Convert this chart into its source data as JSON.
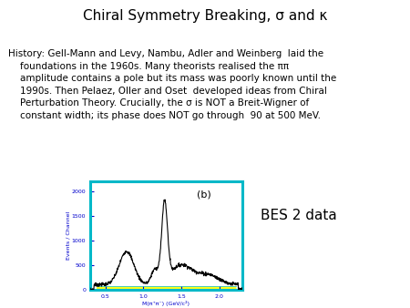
{
  "title": "Chiral Symmetry Breaking, σ and κ",
  "title_fontsize": 11,
  "body_text": "History: Gell-Mann and Levy, Nambu, Adler and Weinberg  laid the\n    foundations in the 1960s. Many theorists realised the ππ\n    amplitude contains a pole but its mass was poorly known until the\n    1990s. Then Pelaez, Oller and Oset  developed ideas from Chiral\n    Perturbation Theory. Crucially, the σ is NOT a Breit-Wigner of\n    constant width; its phase does NOT go through  90 at 500 MeV.",
  "body_fontsize": 7.5,
  "bes_label": "BES 2 data",
  "bes_fontsize": 11,
  "plot_label": "(b)",
  "bg_color": "#ffffff",
  "text_color": "#000000",
  "plot_border_color": "#00b8c8",
  "plot_bg_color": "#ffffff",
  "ylabel_color": "#0000cc",
  "xlabel_color": "#0000cc",
  "tick_color": "#0000cc",
  "ylabel": "Events / Channel",
  "xlabel": "M(π⁺π⁻) (GeV/c²)",
  "xlim": [
    0.3,
    2.3
  ],
  "ylim": [
    0,
    2200
  ],
  "yticks": [
    0,
    500,
    1000,
    1500,
    2000
  ],
  "xticks": [
    0.5,
    1.0,
    1.5,
    2.0
  ]
}
